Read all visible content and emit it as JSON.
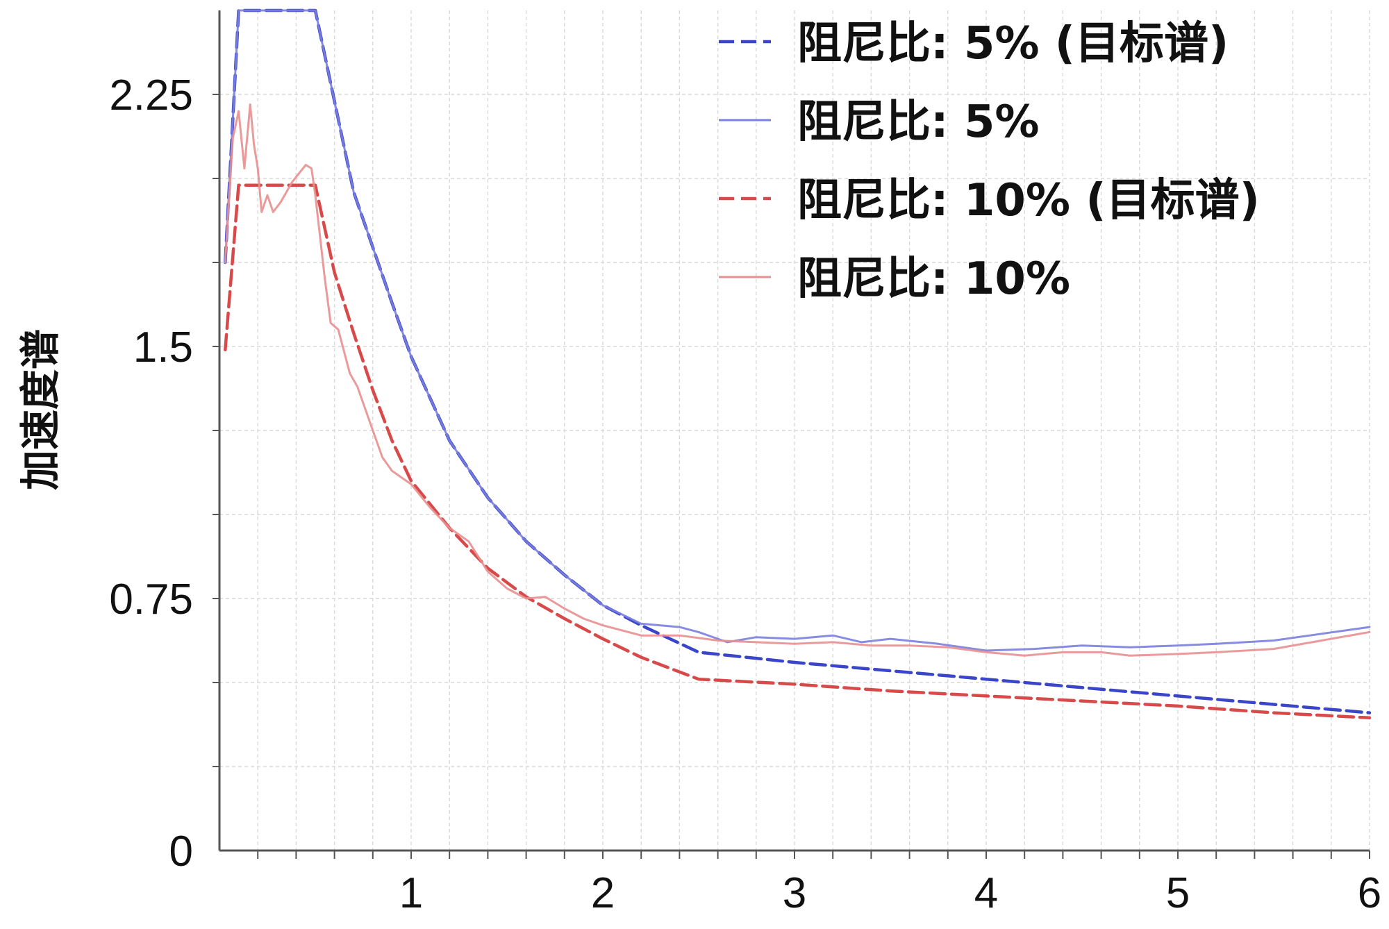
{
  "chart_data": {
    "type": "line",
    "ylabel": "加速度谱",
    "xlabel": "",
    "xlim": [
      0,
      6
    ],
    "ylim": [
      0,
      2.5
    ],
    "x_ticks": [
      1,
      2,
      3,
      4,
      5,
      6
    ],
    "x_tick_labels": [
      "1",
      "2",
      "3",
      "4",
      "5",
      "6"
    ],
    "y_ticks": [
      0,
      0.75,
      1.5,
      2.25
    ],
    "y_tick_labels": [
      "0",
      "0.75",
      "1.5",
      "2.25"
    ],
    "grid": true,
    "legend_position": "top-right",
    "series": [
      {
        "name": "阻尼比: 5% (目标谱)",
        "color": "#3a45c9",
        "style": "dashed",
        "points": [
          [
            0.03,
            1.75
          ],
          [
            0.1,
            2.5
          ],
          [
            0.5,
            2.5
          ],
          [
            0.7,
            1.96
          ],
          [
            0.9,
            1.63
          ],
          [
            1.0,
            1.47
          ],
          [
            1.2,
            1.22
          ],
          [
            1.4,
            1.05
          ],
          [
            1.6,
            0.92
          ],
          [
            1.8,
            0.82
          ],
          [
            2.0,
            0.73
          ],
          [
            2.2,
            0.67
          ],
          [
            2.5,
            0.59
          ],
          [
            3.0,
            0.56
          ],
          [
            3.5,
            0.535
          ],
          [
            4.0,
            0.51
          ],
          [
            4.5,
            0.485
          ],
          [
            5.0,
            0.46
          ],
          [
            5.5,
            0.435
          ],
          [
            6.0,
            0.41
          ]
        ]
      },
      {
        "name": "阻尼比: 5%",
        "color": "#7a80dd",
        "style": "solid",
        "points": [
          [
            0.03,
            1.75
          ],
          [
            0.1,
            2.5
          ],
          [
            0.5,
            2.5
          ],
          [
            0.7,
            1.96
          ],
          [
            0.9,
            1.63
          ],
          [
            1.0,
            1.47
          ],
          [
            1.2,
            1.22
          ],
          [
            1.4,
            1.05
          ],
          [
            1.6,
            0.92
          ],
          [
            1.8,
            0.82
          ],
          [
            2.0,
            0.73
          ],
          [
            2.2,
            0.675
          ],
          [
            2.4,
            0.665
          ],
          [
            2.5,
            0.65
          ],
          [
            2.65,
            0.62
          ],
          [
            2.8,
            0.635
          ],
          [
            3.0,
            0.63
          ],
          [
            3.2,
            0.64
          ],
          [
            3.35,
            0.62
          ],
          [
            3.5,
            0.63
          ],
          [
            3.75,
            0.615
          ],
          [
            4.0,
            0.595
          ],
          [
            4.25,
            0.6
          ],
          [
            4.5,
            0.61
          ],
          [
            4.75,
            0.605
          ],
          [
            5.0,
            0.61
          ],
          [
            5.2,
            0.615
          ],
          [
            5.5,
            0.625
          ],
          [
            5.75,
            0.645
          ],
          [
            6.0,
            0.665
          ]
        ]
      },
      {
        "name": "阻尼比: 10% (目标谱)",
        "color": "#d84a4a",
        "style": "dashed",
        "points": [
          [
            0.03,
            1.49
          ],
          [
            0.1,
            1.98
          ],
          [
            0.5,
            1.98
          ],
          [
            0.6,
            1.72
          ],
          [
            0.7,
            1.54
          ],
          [
            0.8,
            1.37
          ],
          [
            0.9,
            1.22
          ],
          [
            1.0,
            1.1
          ],
          [
            1.2,
            0.96
          ],
          [
            1.4,
            0.84
          ],
          [
            1.6,
            0.755
          ],
          [
            1.8,
            0.69
          ],
          [
            2.0,
            0.63
          ],
          [
            2.2,
            0.575
          ],
          [
            2.5,
            0.51
          ],
          [
            3.0,
            0.495
          ],
          [
            3.5,
            0.475
          ],
          [
            4.0,
            0.46
          ],
          [
            4.5,
            0.445
          ],
          [
            5.0,
            0.43
          ],
          [
            5.5,
            0.41
          ],
          [
            6.0,
            0.395
          ]
        ]
      },
      {
        "name": "阻尼比: 10%",
        "color": "#e88f8f",
        "style": "solid",
        "points": [
          [
            0.03,
            1.75
          ],
          [
            0.07,
            2.12
          ],
          [
            0.1,
            2.2
          ],
          [
            0.13,
            2.03
          ],
          [
            0.16,
            2.22
          ],
          [
            0.18,
            2.1
          ],
          [
            0.2,
            2.03
          ],
          [
            0.22,
            1.9
          ],
          [
            0.25,
            1.95
          ],
          [
            0.28,
            1.9
          ],
          [
            0.32,
            1.93
          ],
          [
            0.38,
            1.99
          ],
          [
            0.45,
            2.04
          ],
          [
            0.48,
            2.03
          ],
          [
            0.5,
            1.95
          ],
          [
            0.55,
            1.7
          ],
          [
            0.58,
            1.57
          ],
          [
            0.62,
            1.55
          ],
          [
            0.68,
            1.42
          ],
          [
            0.72,
            1.38
          ],
          [
            0.8,
            1.25
          ],
          [
            0.85,
            1.17
          ],
          [
            0.9,
            1.13
          ],
          [
            1.0,
            1.09
          ],
          [
            1.1,
            1.02
          ],
          [
            1.2,
            0.96
          ],
          [
            1.3,
            0.92
          ],
          [
            1.4,
            0.83
          ],
          [
            1.5,
            0.78
          ],
          [
            1.6,
            0.75
          ],
          [
            1.7,
            0.755
          ],
          [
            1.8,
            0.72
          ],
          [
            1.9,
            0.69
          ],
          [
            2.0,
            0.67
          ],
          [
            2.2,
            0.64
          ],
          [
            2.4,
            0.64
          ],
          [
            2.6,
            0.625
          ],
          [
            2.8,
            0.62
          ],
          [
            3.0,
            0.615
          ],
          [
            3.2,
            0.62
          ],
          [
            3.4,
            0.61
          ],
          [
            3.6,
            0.61
          ],
          [
            3.8,
            0.605
          ],
          [
            4.0,
            0.59
          ],
          [
            4.2,
            0.58
          ],
          [
            4.4,
            0.59
          ],
          [
            4.6,
            0.59
          ],
          [
            4.75,
            0.58
          ],
          [
            5.0,
            0.585
          ],
          [
            5.2,
            0.59
          ],
          [
            5.5,
            0.6
          ],
          [
            5.75,
            0.625
          ],
          [
            6.0,
            0.65
          ]
        ]
      }
    ]
  }
}
